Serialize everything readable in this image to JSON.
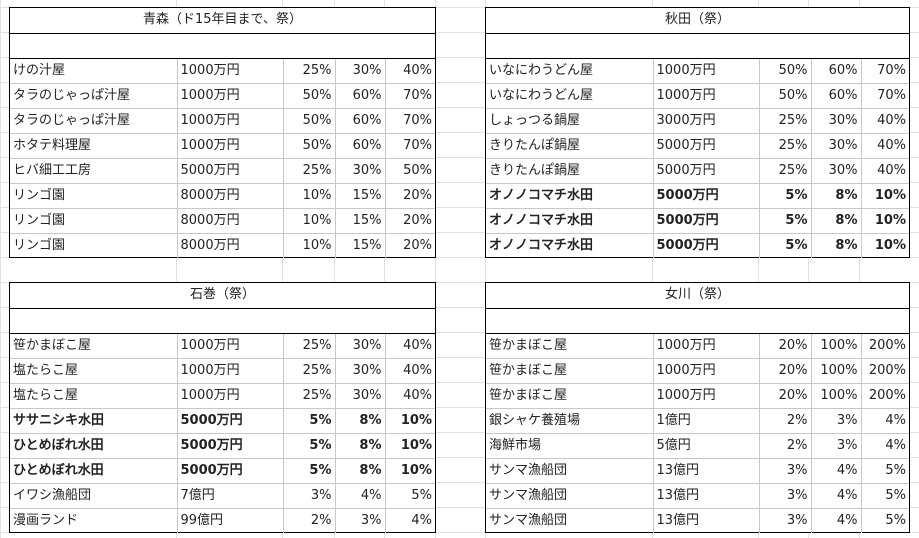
{
  "tables": [
    {
      "title": "青森（ド15年目まで、祭）",
      "rows": [
        {
          "name": "けの汁屋",
          "cost": "1000万円",
          "p1": "25%",
          "p2": "30%",
          "p3": "40%",
          "bold": false
        },
        {
          "name": "タラのじゃっぱ汁屋",
          "cost": "1000万円",
          "p1": "50%",
          "p2": "60%",
          "p3": "70%",
          "bold": false
        },
        {
          "name": "タラのじゃっぱ汁屋",
          "cost": "1000万円",
          "p1": "50%",
          "p2": "60%",
          "p3": "70%",
          "bold": false
        },
        {
          "name": "ホタテ料理屋",
          "cost": "1000万円",
          "p1": "50%",
          "p2": "60%",
          "p3": "70%",
          "bold": false
        },
        {
          "name": "ヒバ細工工房",
          "cost": "5000万円",
          "p1": "25%",
          "p2": "30%",
          "p3": "50%",
          "bold": false
        },
        {
          "name": "リンゴ園",
          "cost": "8000万円",
          "p1": "10%",
          "p2": "15%",
          "p3": "20%",
          "bold": false
        },
        {
          "name": "リンゴ園",
          "cost": "8000万円",
          "p1": "10%",
          "p2": "15%",
          "p3": "20%",
          "bold": false
        },
        {
          "name": "リンゴ園",
          "cost": "8000万円",
          "p1": "10%",
          "p2": "15%",
          "p3": "20%",
          "bold": false
        }
      ]
    },
    {
      "title": "秋田（祭）",
      "rows": [
        {
          "name": "いなにわうどん屋",
          "cost": "1000万円",
          "p1": "50%",
          "p2": "60%",
          "p3": "70%",
          "bold": false
        },
        {
          "name": "いなにわうどん屋",
          "cost": "1000万円",
          "p1": "50%",
          "p2": "60%",
          "p3": "70%",
          "bold": false
        },
        {
          "name": "しょっつる鍋屋",
          "cost": "3000万円",
          "p1": "25%",
          "p2": "30%",
          "p3": "40%",
          "bold": false
        },
        {
          "name": "きりたんぽ鍋屋",
          "cost": "5000万円",
          "p1": "25%",
          "p2": "30%",
          "p3": "40%",
          "bold": false
        },
        {
          "name": "きりたんぽ鍋屋",
          "cost": "5000万円",
          "p1": "25%",
          "p2": "30%",
          "p3": "40%",
          "bold": false
        },
        {
          "name": "オノノコマチ水田",
          "cost": "5000万円",
          "p1": "5%",
          "p2": "8%",
          "p3": "10%",
          "bold": true
        },
        {
          "name": "オノノコマチ水田",
          "cost": "5000万円",
          "p1": "5%",
          "p2": "8%",
          "p3": "10%",
          "bold": true
        },
        {
          "name": "オノノコマチ水田",
          "cost": "5000万円",
          "p1": "5%",
          "p2": "8%",
          "p3": "10%",
          "bold": true
        }
      ]
    },
    {
      "title": "石巻（祭）",
      "rows": [
        {
          "name": "笹かまぼこ屋",
          "cost": "1000万円",
          "p1": "25%",
          "p2": "30%",
          "p3": "40%",
          "bold": false
        },
        {
          "name": "塩たらこ屋",
          "cost": "1000万円",
          "p1": "25%",
          "p2": "30%",
          "p3": "40%",
          "bold": false
        },
        {
          "name": "塩たらこ屋",
          "cost": "1000万円",
          "p1": "25%",
          "p2": "30%",
          "p3": "40%",
          "bold": false
        },
        {
          "name": "ササニシキ水田",
          "cost": "5000万円",
          "p1": "5%",
          "p2": "8%",
          "p3": "10%",
          "bold": true
        },
        {
          "name": "ひとめぼれ水田",
          "cost": "5000万円",
          "p1": "5%",
          "p2": "8%",
          "p3": "10%",
          "bold": true
        },
        {
          "name": "ひとめぼれ水田",
          "cost": "5000万円",
          "p1": "5%",
          "p2": "8%",
          "p3": "10%",
          "bold": true
        },
        {
          "name": "イワシ漁船団",
          "cost": "7億円",
          "p1": "3%",
          "p2": "4%",
          "p3": "5%",
          "bold": false
        },
        {
          "name": "漫画ランド",
          "cost": "99億円",
          "p1": "2%",
          "p2": "3%",
          "p3": "4%",
          "bold": false
        }
      ]
    },
    {
      "title": "女川（祭）",
      "rows": [
        {
          "name": "笹かまぼこ屋",
          "cost": "1000万円",
          "p1": "20%",
          "p2": "100%",
          "p3": "200%",
          "bold": false
        },
        {
          "name": "笹かまぼこ屋",
          "cost": "1000万円",
          "p1": "20%",
          "p2": "100%",
          "p3": "200%",
          "bold": false
        },
        {
          "name": "笹かまぼこ屋",
          "cost": "1000万円",
          "p1": "20%",
          "p2": "100%",
          "p3": "200%",
          "bold": false
        },
        {
          "name": "銀シャケ養殖場",
          "cost": "1億円",
          "p1": "2%",
          "p2": "3%",
          "p3": "4%",
          "bold": false
        },
        {
          "name": "海鮮市場",
          "cost": "5億円",
          "p1": "2%",
          "p2": "3%",
          "p3": "4%",
          "bold": false
        },
        {
          "name": "サンマ漁船団",
          "cost": "13億円",
          "p1": "3%",
          "p2": "4%",
          "p3": "5%",
          "bold": false
        },
        {
          "name": "サンマ漁船団",
          "cost": "13億円",
          "p1": "3%",
          "p2": "4%",
          "p3": "5%",
          "bold": false
        },
        {
          "name": "サンマ漁船団",
          "cost": "13億円",
          "p1": "3%",
          "p2": "4%",
          "p3": "5%",
          "bold": false
        }
      ]
    }
  ]
}
